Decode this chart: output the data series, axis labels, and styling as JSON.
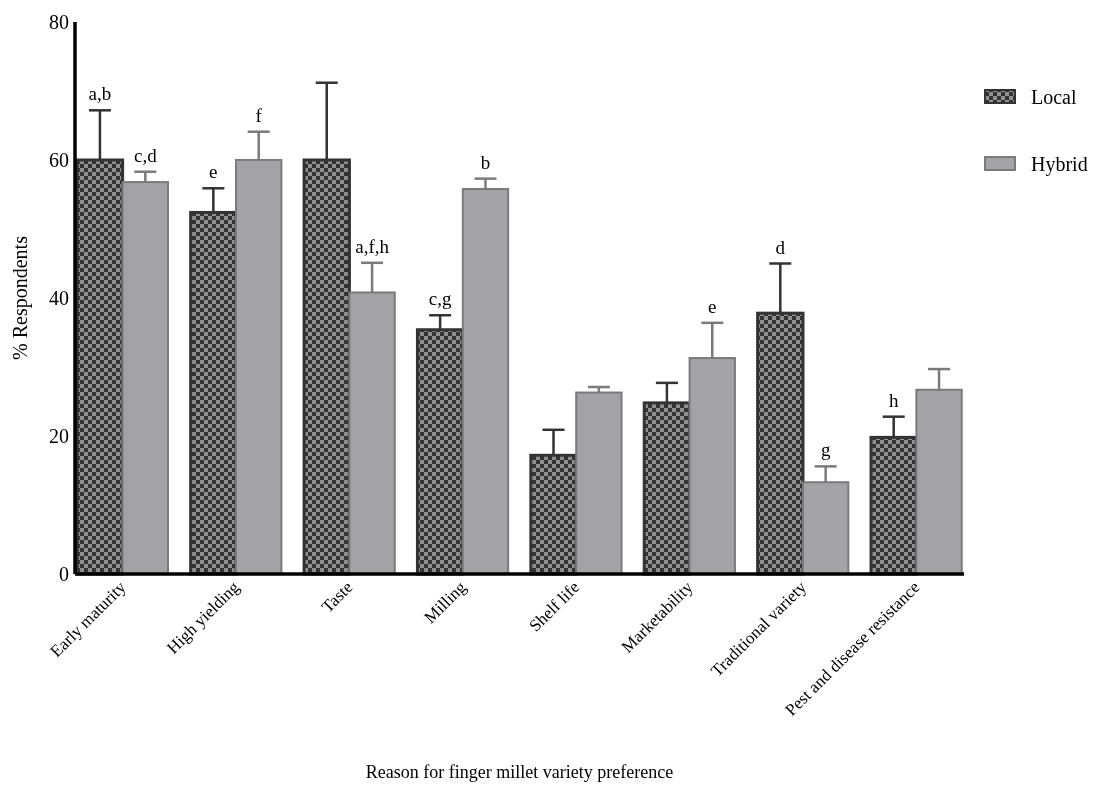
{
  "chart_data": {
    "type": "bar",
    "xlabel": "Reason for finger millet variety preference",
    "ylabel": "% Respondents",
    "categories": [
      "Early maturity",
      "High yielding",
      "Taste",
      "Milling",
      "Shelf life",
      "Marketability",
      "Traditional variety",
      "Pest and disease resistance"
    ],
    "series": [
      {
        "name": "Local",
        "color": "#333333",
        "values": [
          60,
          52.4,
          60,
          35.4,
          17.2,
          24.8,
          37.8,
          19.8
        ],
        "errors": [
          [
            60,
            67.2
          ],
          [
            52.4,
            55.9
          ],
          [
            60,
            71.2
          ],
          [
            35.4,
            37.5
          ],
          [
            17.2,
            20.9
          ],
          [
            24.8,
            27.7
          ],
          [
            37.8,
            45
          ],
          [
            19.8,
            22.8
          ]
        ],
        "value_labels": [
          "a,b",
          "e",
          null,
          "c,g",
          null,
          null,
          "d",
          "h"
        ]
      },
      {
        "name": "Hybrid",
        "color": "#a3a2a7",
        "values": [
          56.8,
          60,
          40.8,
          55.8,
          26.3,
          31.3,
          13.3,
          26.7
        ],
        "errors": [
          [
            56.8,
            58.3
          ],
          [
            60,
            64.1
          ],
          [
            40.8,
            45.1
          ],
          [
            55.8,
            57.3
          ],
          [
            26.3,
            27.1
          ],
          [
            31.3,
            36.4
          ],
          [
            13.3,
            15.6
          ],
          [
            26.7,
            29.7
          ]
        ],
        "value_labels": [
          "c,d",
          "f",
          "a,f,h",
          "b",
          null,
          "e",
          "g",
          null
        ]
      }
    ],
    "ylim": [
      0,
      80
    ],
    "yticks": [
      0,
      20,
      40,
      60,
      80
    ],
    "legend": "top right"
  }
}
